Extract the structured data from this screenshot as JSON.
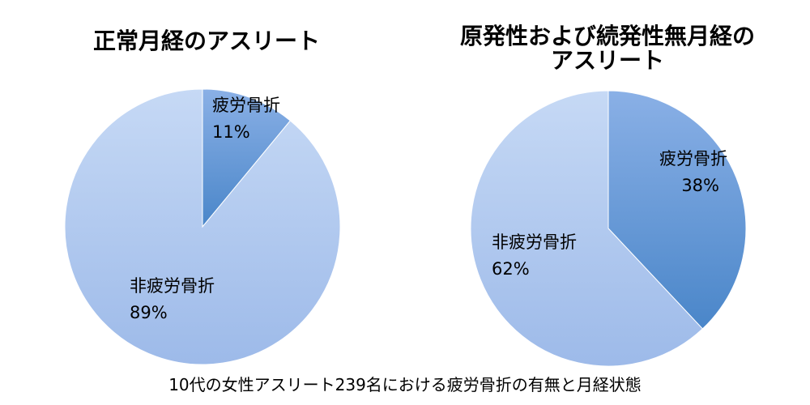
{
  "chart_data": [
    {
      "type": "pie",
      "title": "正常月経のアスリート",
      "slices": [
        {
          "label": "疲労骨折",
          "value": 11,
          "value_label": "11%"
        },
        {
          "label": "非疲労骨折",
          "value": 89,
          "value_label": "89%"
        }
      ]
    },
    {
      "type": "pie",
      "title": "原発性および続発性無月経の\nアスリート",
      "slices": [
        {
          "label": "疲労骨折",
          "value": 38,
          "value_label": "38%"
        },
        {
          "label": "非疲労骨折",
          "value": 62,
          "value_label": "62%"
        }
      ]
    }
  ],
  "caption": "10代の女性アスリート239名における疲労骨折の有無と月経状態",
  "colors": {
    "fracture_light": "#8AB0E6",
    "fracture_dark": "#4A86C9",
    "nonfracture_light": "#C6D9F5",
    "nonfracture_dark": "#9DBAE9"
  }
}
